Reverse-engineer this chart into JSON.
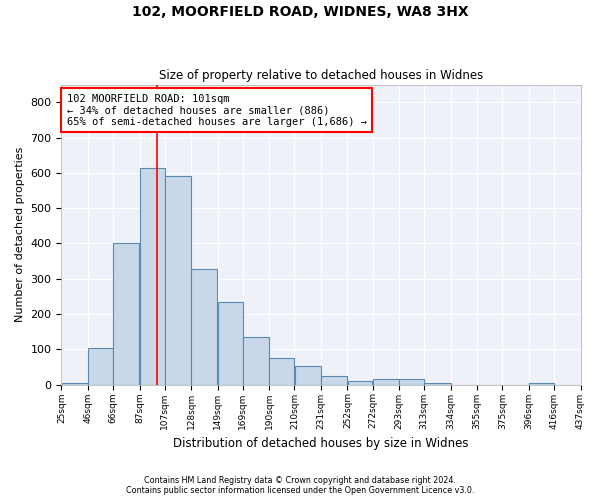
{
  "title1": "102, MOORFIELD ROAD, WIDNES, WA8 3HX",
  "title2": "Size of property relative to detached houses in Widnes",
  "xlabel": "Distribution of detached houses by size in Widnes",
  "ylabel": "Number of detached properties",
  "bar_color": "#c8d8e8",
  "bar_edge_color": "#5a8ab0",
  "background_color": "#eef2f8",
  "grid_color": "#ffffff",
  "red_line_x": 101,
  "annotation_line1": "102 MOORFIELD ROAD: 101sqm",
  "annotation_line2": "← 34% of detached houses are smaller (886)",
  "annotation_line3": "65% of semi-detached houses are larger (1,686) →",
  "footer1": "Contains HM Land Registry data © Crown copyright and database right 2024.",
  "footer2": "Contains public sector information licensed under the Open Government Licence v3.0.",
  "bin_edges": [
    25,
    46,
    66,
    87,
    107,
    128,
    149,
    169,
    190,
    210,
    231,
    252,
    272,
    293,
    313,
    334,
    355,
    375,
    396,
    416,
    437
  ],
  "bin_heights": [
    6,
    105,
    401,
    615,
    592,
    328,
    235,
    135,
    76,
    54,
    25,
    11,
    15,
    15,
    5,
    0,
    0,
    0,
    6,
    0
  ],
  "ylim": [
    0,
    850
  ],
  "yticks": [
    0,
    100,
    200,
    300,
    400,
    500,
    600,
    700,
    800
  ]
}
